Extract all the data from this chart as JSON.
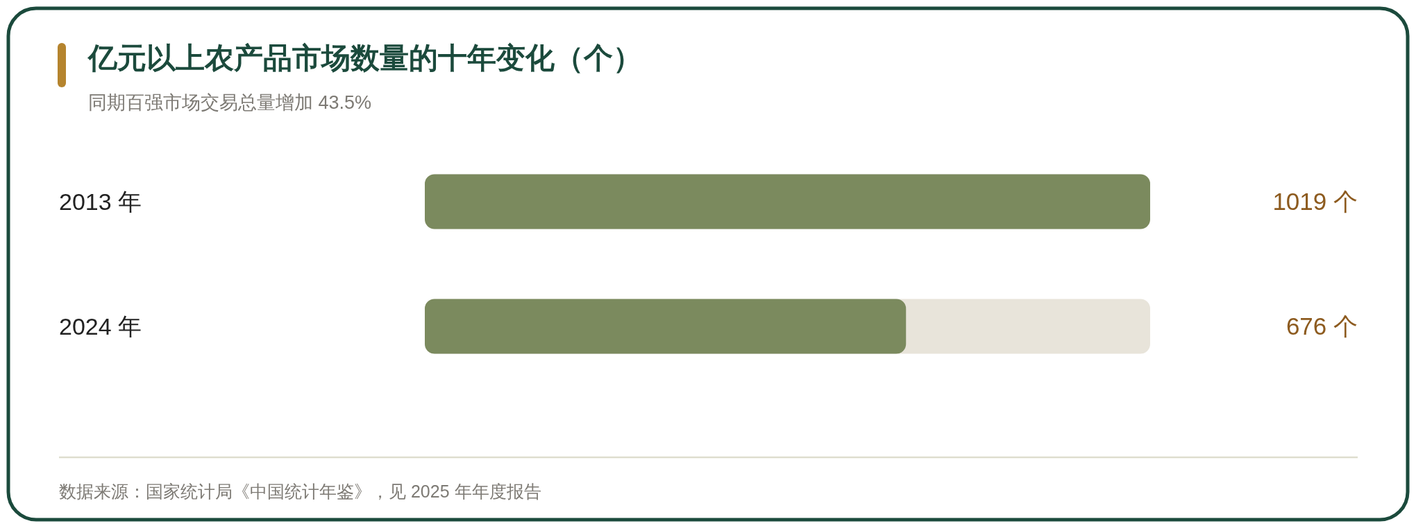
{
  "chart_data": {
    "type": "bar",
    "orientation": "horizontal",
    "title": "亿元以上农产品市场数量的十年变化（个）",
    "subtitle": "同期百强市场交易总量增加 43.5%",
    "categories": [
      "2013 年",
      "2024 年"
    ],
    "values": [
      1019,
      676
    ],
    "value_labels": [
      "1019 个",
      "676 个"
    ],
    "color": "#7b8a5e",
    "tick_labels": "y",
    "annotations": [
      "数据来源：国家统计局《中国统计年鉴》，见 2025 年年度报告"
    ]
  }
}
